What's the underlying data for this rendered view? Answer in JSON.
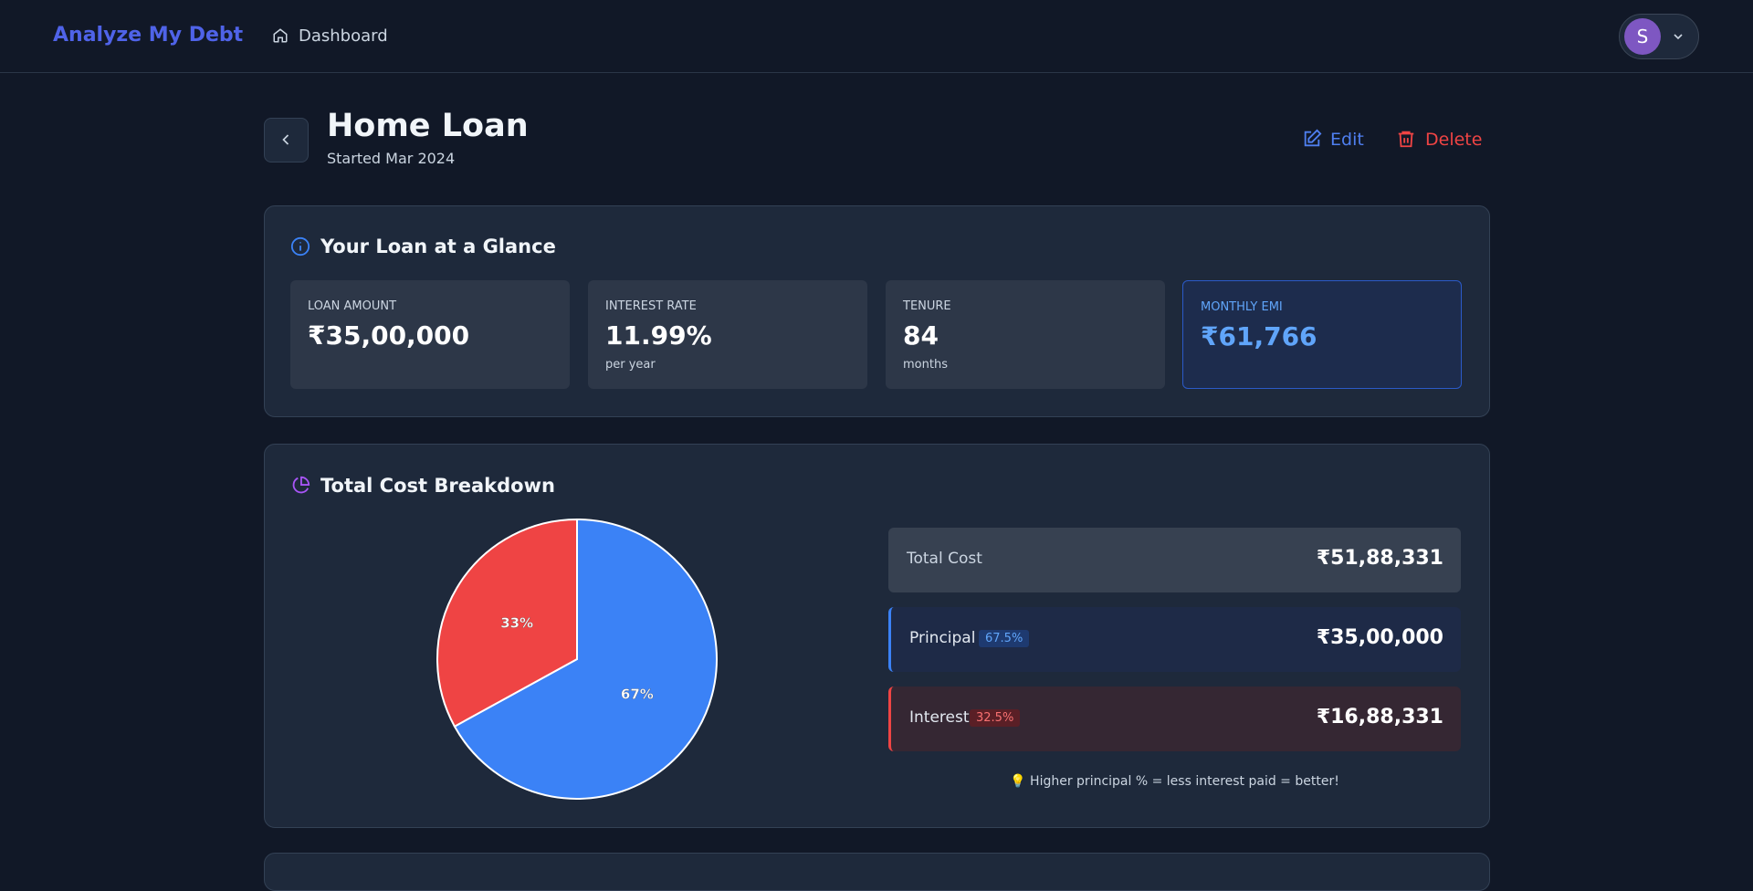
{
  "nav": {
    "brand": "Analyze My Debt",
    "link": "Dashboard",
    "avatar": "S"
  },
  "header": {
    "title": "Home Loan",
    "subtitle": "Started Mar 2024",
    "edit": "Edit",
    "delete": "Delete"
  },
  "glance": {
    "title": "Your Loan at a Glance",
    "stats": [
      {
        "label": "LOAN AMOUNT",
        "value": "₹35,00,000"
      },
      {
        "label": "INTEREST RATE",
        "value": "11.99%",
        "note": "per year"
      },
      {
        "label": "TENURE",
        "value": "84",
        "note": "months"
      },
      {
        "label": "MONTHLY EMI",
        "value": "₹61,766"
      }
    ]
  },
  "breakdown": {
    "title": "Total Cost Breakdown",
    "chart": {
      "type": "pie",
      "values": [
        67,
        33
      ],
      "value_labels": [
        "67%",
        "33%"
      ],
      "colors": [
        "#3b82f6",
        "#ef4444"
      ]
    },
    "rows": [
      {
        "label": "Total Cost",
        "amount": "₹51,88,331"
      },
      {
        "label": "Principal",
        "badge": "67.5%",
        "amount": "₹35,00,000"
      },
      {
        "label": "Interest",
        "badge": "32.5%",
        "amount": "₹16,88,331"
      }
    ],
    "tip": "💡 Higher principal % = less interest paid = better!"
  }
}
